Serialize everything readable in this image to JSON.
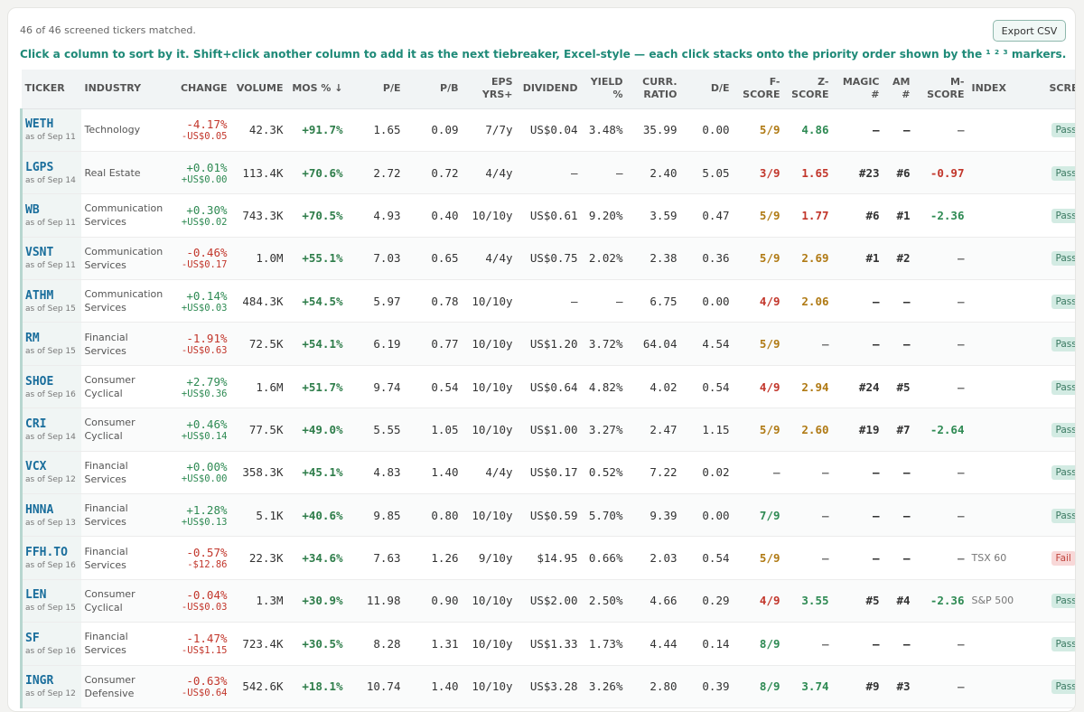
{
  "status_text": "46 of 46 screened tickers matched.",
  "export_label": "Export CSV",
  "hint_text": "Click a column to sort by it. Shift+click another column to add it as the next tiebreaker, Excel-style — each click stacks onto the priority order shown by the ¹ ² ³ markers.",
  "columns": {
    "ticker": "TICKER",
    "industry": "INDUSTRY",
    "change": "CHANGE",
    "volume": "VOLUME",
    "mos": "MOS %",
    "mos_sort": "↓",
    "pe": "P/E",
    "pb": "P/B",
    "eps_1": "EPS",
    "eps_2": "YRS+",
    "dividend": "DIVIDEND",
    "yield_1": "YIELD",
    "yield_2": "%",
    "curr_1": "CURR.",
    "curr_2": "RATIO",
    "de": "D/E",
    "f_1": "F-",
    "f_2": "SCORE",
    "z_1": "Z-",
    "z_2": "SCORE",
    "magic_1": "MAGIC",
    "magic_2": "#",
    "am_1": "AM",
    "am_2": "#",
    "m_1": "M-",
    "m_2": "SCORE",
    "index": "INDEX",
    "screen": "SCREEN"
  },
  "colors": {
    "accent": "#1f8a78",
    "positive": "#2e8a53",
    "negative": "#c2362b",
    "warning": "#b07a14",
    "ticker": "#1a6e9c",
    "pass_bg": "#d3ebe3",
    "fail_bg": "#f8d8d8"
  },
  "rows": [
    {
      "ticker": "WETH",
      "asof": "as of Sep 11",
      "industry": "Technology",
      "chg_pct": "-4.17%",
      "chg_abs": "-US$0.05",
      "chg_dir": "down",
      "volume": "42.3K",
      "mos": "+91.7%",
      "pe": "1.65",
      "pb": "0.09",
      "eps": "7/7y",
      "dividend": "US$0.04",
      "yield": "3.48%",
      "curr": "35.99",
      "de": "0.00",
      "f": "5/9",
      "f_lvl": "mid",
      "z": "4.86",
      "z_lvl": "good",
      "magic": "—",
      "am": "—",
      "m": "—",
      "m_lvl": "none",
      "index": "",
      "screen": "Pass"
    },
    {
      "ticker": "LGPS",
      "asof": "as of Sep 14",
      "industry": "Real Estate",
      "chg_pct": "+0.01%",
      "chg_abs": "+US$0.00",
      "chg_dir": "up",
      "volume": "113.4K",
      "mos": "+70.6%",
      "pe": "2.72",
      "pb": "0.72",
      "eps": "4/4y",
      "dividend": "—",
      "yield": "—",
      "curr": "2.40",
      "de": "5.05",
      "f": "3/9",
      "f_lvl": "bad",
      "z": "1.65",
      "z_lvl": "bad",
      "magic": "#23",
      "am": "#6",
      "m": "-0.97",
      "m_lvl": "bad",
      "index": "",
      "screen": "Pass"
    },
    {
      "ticker": "WB",
      "asof": "as of Sep 11",
      "industry": "Communication Services",
      "chg_pct": "+0.30%",
      "chg_abs": "+US$0.02",
      "chg_dir": "up",
      "volume": "743.3K",
      "mos": "+70.5%",
      "pe": "4.93",
      "pb": "0.40",
      "eps": "10/10y",
      "dividend": "US$0.61",
      "yield": "9.20%",
      "curr": "3.59",
      "de": "0.47",
      "f": "5/9",
      "f_lvl": "mid",
      "z": "1.77",
      "z_lvl": "bad",
      "magic": "#6",
      "am": "#1",
      "m": "-2.36",
      "m_lvl": "good",
      "index": "",
      "screen": "Pass"
    },
    {
      "ticker": "VSNT",
      "asof": "as of Sep 11",
      "industry": "Communication Services",
      "chg_pct": "-0.46%",
      "chg_abs": "-US$0.17",
      "chg_dir": "down",
      "volume": "1.0M",
      "mos": "+55.1%",
      "pe": "7.03",
      "pb": "0.65",
      "eps": "4/4y",
      "dividend": "US$0.75",
      "yield": "2.02%",
      "curr": "2.38",
      "de": "0.36",
      "f": "5/9",
      "f_lvl": "mid",
      "z": "2.69",
      "z_lvl": "mid",
      "magic": "#1",
      "am": "#2",
      "m": "—",
      "m_lvl": "none",
      "index": "",
      "screen": "Pass"
    },
    {
      "ticker": "ATHM",
      "asof": "as of Sep 15",
      "industry": "Communication Services",
      "chg_pct": "+0.14%",
      "chg_abs": "+US$0.03",
      "chg_dir": "up",
      "volume": "484.3K",
      "mos": "+54.5%",
      "pe": "5.97",
      "pb": "0.78",
      "eps": "10/10y",
      "dividend": "—",
      "yield": "—",
      "curr": "6.75",
      "de": "0.00",
      "f": "4/9",
      "f_lvl": "bad",
      "z": "2.06",
      "z_lvl": "mid",
      "magic": "—",
      "am": "—",
      "m": "—",
      "m_lvl": "none",
      "index": "",
      "screen": "Pass"
    },
    {
      "ticker": "RM",
      "asof": "as of Sep 15",
      "industry": "Financial Services",
      "chg_pct": "-1.91%",
      "chg_abs": "-US$0.63",
      "chg_dir": "down",
      "volume": "72.5K",
      "mos": "+54.1%",
      "pe": "6.19",
      "pb": "0.77",
      "eps": "10/10y",
      "dividend": "US$1.20",
      "yield": "3.72%",
      "curr": "64.04",
      "de": "4.54",
      "f": "5/9",
      "f_lvl": "mid",
      "z": "—",
      "z_lvl": "none",
      "magic": "—",
      "am": "—",
      "m": "—",
      "m_lvl": "none",
      "index": "",
      "screen": "Pass"
    },
    {
      "ticker": "SHOE",
      "asof": "as of Sep 16",
      "industry": "Consumer Cyclical",
      "chg_pct": "+2.79%",
      "chg_abs": "+US$0.36",
      "chg_dir": "up",
      "volume": "1.6M",
      "mos": "+51.7%",
      "pe": "9.74",
      "pb": "0.54",
      "eps": "10/10y",
      "dividend": "US$0.64",
      "yield": "4.82%",
      "curr": "4.02",
      "de": "0.54",
      "f": "4/9",
      "f_lvl": "bad",
      "z": "2.94",
      "z_lvl": "mid",
      "magic": "#24",
      "am": "#5",
      "m": "—",
      "m_lvl": "none",
      "index": "",
      "screen": "Pass"
    },
    {
      "ticker": "CRI",
      "asof": "as of Sep 14",
      "industry": "Consumer Cyclical",
      "chg_pct": "+0.46%",
      "chg_abs": "+US$0.14",
      "chg_dir": "up",
      "volume": "77.5K",
      "mos": "+49.0%",
      "pe": "5.55",
      "pb": "1.05",
      "eps": "10/10y",
      "dividend": "US$1.00",
      "yield": "3.27%",
      "curr": "2.47",
      "de": "1.15",
      "f": "5/9",
      "f_lvl": "mid",
      "z": "2.60",
      "z_lvl": "mid",
      "magic": "#19",
      "am": "#7",
      "m": "-2.64",
      "m_lvl": "good",
      "index": "",
      "screen": "Pass"
    },
    {
      "ticker": "VCX",
      "asof": "as of Sep 12",
      "industry": "Financial Services",
      "chg_pct": "+0.00%",
      "chg_abs": "+US$0.00",
      "chg_dir": "up",
      "volume": "358.3K",
      "mos": "+45.1%",
      "pe": "4.83",
      "pb": "1.40",
      "eps": "4/4y",
      "dividend": "US$0.17",
      "yield": "0.52%",
      "curr": "7.22",
      "de": "0.02",
      "f": "—",
      "f_lvl": "none",
      "z": "—",
      "z_lvl": "none",
      "magic": "—",
      "am": "—",
      "m": "—",
      "m_lvl": "none",
      "index": "",
      "screen": "Pass"
    },
    {
      "ticker": "HNNA",
      "asof": "as of Sep 13",
      "industry": "Financial Services",
      "chg_pct": "+1.28%",
      "chg_abs": "+US$0.13",
      "chg_dir": "up",
      "volume": "5.1K",
      "mos": "+40.6%",
      "pe": "9.85",
      "pb": "0.80",
      "eps": "10/10y",
      "dividend": "US$0.59",
      "yield": "5.70%",
      "curr": "9.39",
      "de": "0.00",
      "f": "7/9",
      "f_lvl": "good",
      "z": "—",
      "z_lvl": "none",
      "magic": "—",
      "am": "—",
      "m": "—",
      "m_lvl": "none",
      "index": "",
      "screen": "Pass"
    },
    {
      "ticker": "FFH.TO",
      "asof": "as of Sep 16",
      "industry": "Financial Services",
      "chg_pct": "-0.57%",
      "chg_abs": "-$12.86",
      "chg_dir": "down",
      "volume": "22.3K",
      "mos": "+34.6%",
      "pe": "7.63",
      "pb": "1.26",
      "eps": "9/10y",
      "dividend": "$14.95",
      "yield": "0.66%",
      "curr": "2.03",
      "de": "0.54",
      "f": "5/9",
      "f_lvl": "mid",
      "z": "—",
      "z_lvl": "none",
      "magic": "—",
      "am": "—",
      "m": "—",
      "m_lvl": "none",
      "index": "TSX 60",
      "screen": "Fail"
    },
    {
      "ticker": "LEN",
      "asof": "as of Sep 15",
      "industry": "Consumer Cyclical",
      "chg_pct": "-0.04%",
      "chg_abs": "-US$0.03",
      "chg_dir": "down",
      "volume": "1.3M",
      "mos": "+30.9%",
      "pe": "11.98",
      "pb": "0.90",
      "eps": "10/10y",
      "dividend": "US$2.00",
      "yield": "2.50%",
      "curr": "4.66",
      "de": "0.29",
      "f": "4/9",
      "f_lvl": "bad",
      "z": "3.55",
      "z_lvl": "good",
      "magic": "#5",
      "am": "#4",
      "m": "-2.36",
      "m_lvl": "good",
      "index": "S&P 500",
      "screen": "Pass"
    },
    {
      "ticker": "SF",
      "asof": "as of Sep 16",
      "industry": "Financial Services",
      "chg_pct": "-1.47%",
      "chg_abs": "-US$1.15",
      "chg_dir": "down",
      "volume": "723.4K",
      "mos": "+30.5%",
      "pe": "8.28",
      "pb": "1.31",
      "eps": "10/10y",
      "dividend": "US$1.33",
      "yield": "1.73%",
      "curr": "4.44",
      "de": "0.14",
      "f": "8/9",
      "f_lvl": "good",
      "z": "—",
      "z_lvl": "none",
      "magic": "—",
      "am": "—",
      "m": "—",
      "m_lvl": "none",
      "index": "",
      "screen": "Pass"
    },
    {
      "ticker": "INGR",
      "asof": "as of Sep 12",
      "industry": "Consumer Defensive",
      "chg_pct": "-0.63%",
      "chg_abs": "-US$0.64",
      "chg_dir": "down",
      "volume": "542.6K",
      "mos": "+18.1%",
      "pe": "10.74",
      "pb": "1.40",
      "eps": "10/10y",
      "dividend": "US$3.28",
      "yield": "3.26%",
      "curr": "2.80",
      "de": "0.39",
      "f": "8/9",
      "f_lvl": "good",
      "z": "3.74",
      "z_lvl": "good",
      "magic": "#9",
      "am": "#3",
      "m": "—",
      "m_lvl": "none",
      "index": "",
      "screen": "Pass"
    }
  ]
}
